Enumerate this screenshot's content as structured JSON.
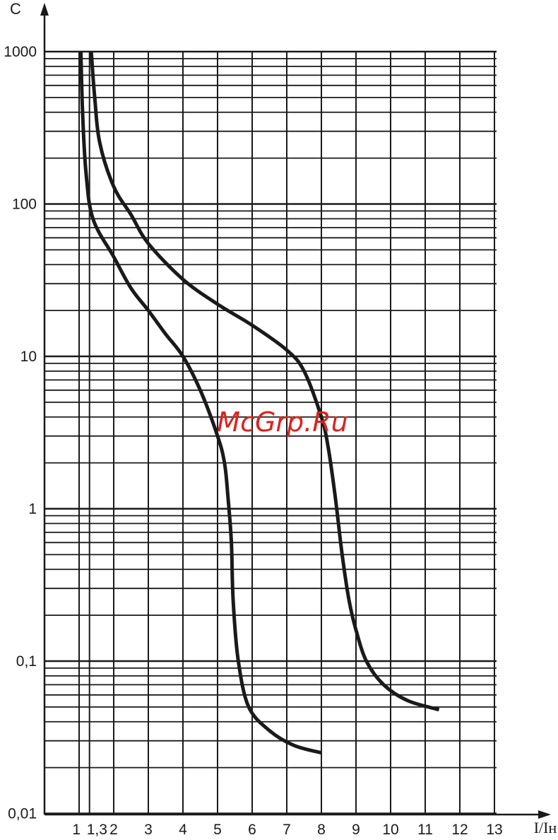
{
  "chart_data": {
    "type": "line",
    "xlabel": "I/Iн",
    "ylabel": "С",
    "x_ticks": [
      {
        "value": 1,
        "label": "1"
      },
      {
        "value": 1.3,
        "label": "1,3"
      },
      {
        "value": 2,
        "label": "2"
      },
      {
        "value": 3,
        "label": "3"
      },
      {
        "value": 4,
        "label": "4"
      },
      {
        "value": 5,
        "label": "5"
      },
      {
        "value": 6,
        "label": "6"
      },
      {
        "value": 7,
        "label": "7"
      },
      {
        "value": 8,
        "label": "8"
      },
      {
        "value": 9,
        "label": "9"
      },
      {
        "value": 10,
        "label": "10"
      },
      {
        "value": 11,
        "label": "11"
      },
      {
        "value": 12,
        "label": "12"
      },
      {
        "value": 13,
        "label": "13"
      }
    ],
    "y_ticks": [
      {
        "value": 1000,
        "label": "1000"
      },
      {
        "value": 100,
        "label": "100"
      },
      {
        "value": 10,
        "label": "10"
      },
      {
        "value": 1,
        "label": "1"
      },
      {
        "value": 0.1,
        "label": "0,1"
      },
      {
        "value": 0.01,
        "label": "0,01"
      }
    ],
    "xlim": [
      0,
      13
    ],
    "ylim": [
      0.01,
      1000
    ],
    "y_scale": "log",
    "grid": true,
    "series": [
      {
        "points": [
          [
            1.05,
            1000
          ],
          [
            1.1,
            400
          ],
          [
            1.2,
            160
          ],
          [
            1.4,
            80
          ],
          [
            2,
            45
          ],
          [
            2.5,
            28
          ],
          [
            3,
            20
          ],
          [
            3.5,
            14
          ],
          [
            4,
            10
          ],
          [
            4.5,
            6
          ],
          [
            5,
            3
          ],
          [
            5.2,
            2
          ],
          [
            5.3,
            1.2
          ],
          [
            5.4,
            0.6
          ],
          [
            5.45,
            0.25
          ],
          [
            5.6,
            0.1
          ],
          [
            5.9,
            0.05
          ],
          [
            6.5,
            0.035
          ],
          [
            7.2,
            0.028
          ],
          [
            8,
            0.025
          ]
        ]
      },
      {
        "points": [
          [
            1.35,
            1000
          ],
          [
            1.45,
            500
          ],
          [
            1.6,
            250
          ],
          [
            2,
            130
          ],
          [
            2.5,
            85
          ],
          [
            3,
            55
          ],
          [
            4,
            32
          ],
          [
            5,
            22
          ],
          [
            6,
            16
          ],
          [
            7,
            11
          ],
          [
            7.5,
            8
          ],
          [
            8,
            4
          ],
          [
            8.2,
            2.5
          ],
          [
            8.4,
            1.2
          ],
          [
            8.6,
            0.5
          ],
          [
            8.8,
            0.25
          ],
          [
            9,
            0.16
          ],
          [
            9.3,
            0.1
          ],
          [
            9.8,
            0.07
          ],
          [
            10.5,
            0.055
          ],
          [
            11.4,
            0.048
          ]
        ]
      }
    ]
  },
  "watermark": "McGrp.Ru"
}
